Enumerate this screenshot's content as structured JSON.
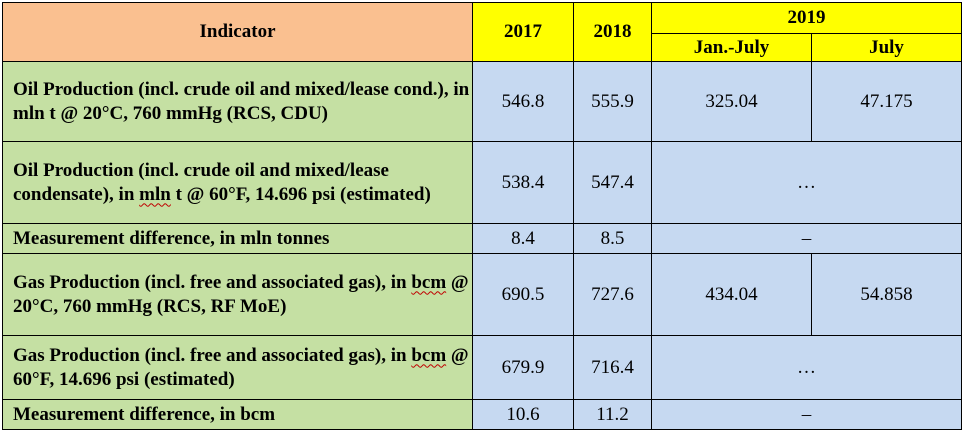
{
  "header": {
    "indicator": "Indicator",
    "y2017": "2017",
    "y2018": "2018",
    "y2019": "2019",
    "jan_july": "Jan.-July",
    "july": "July"
  },
  "rows": [
    {
      "indicator_parts": [
        "Oil Production (incl. crude oil and mixed/lease cond.), in mln t @ 20°C, 760 mmHg (RCS, CDU)"
      ],
      "v2017": "546.8",
      "v2018": "555.9",
      "jan_july": "325.04",
      "july": "47.175"
    },
    {
      "indicator_parts": [
        "Oil Production (incl. crude oil and mixed/lease condensate), in ",
        "mln",
        " t @ 60°F, 14.696 psi (estimated)"
      ],
      "v2017": "538.4",
      "v2018": "547.4",
      "merged": "…"
    },
    {
      "indicator_parts": [
        "Measurement difference, in mln tonnes"
      ],
      "v2017": "8.4",
      "v2018": "8.5",
      "merged": "–"
    },
    {
      "indicator_parts": [
        "Gas Production (incl. free and associated gas), in ",
        "bcm",
        " @ 20°C, 760 mmHg (RCS, RF MoE)"
      ],
      "v2017": "690.5",
      "v2018": "727.6",
      "jan_july": "434.04",
      "july": "54.858"
    },
    {
      "indicator_parts": [
        "Gas Production (incl. free and associated gas), in ",
        "bcm",
        " @ 60°F, 14.696 psi (estimated)"
      ],
      "v2017": "679.9",
      "v2018": "716.4",
      "merged": "…"
    },
    {
      "indicator_parts": [
        "Measurement difference, in bcm"
      ],
      "v2017": "10.6",
      "v2018": "11.2",
      "merged": "–"
    }
  ]
}
